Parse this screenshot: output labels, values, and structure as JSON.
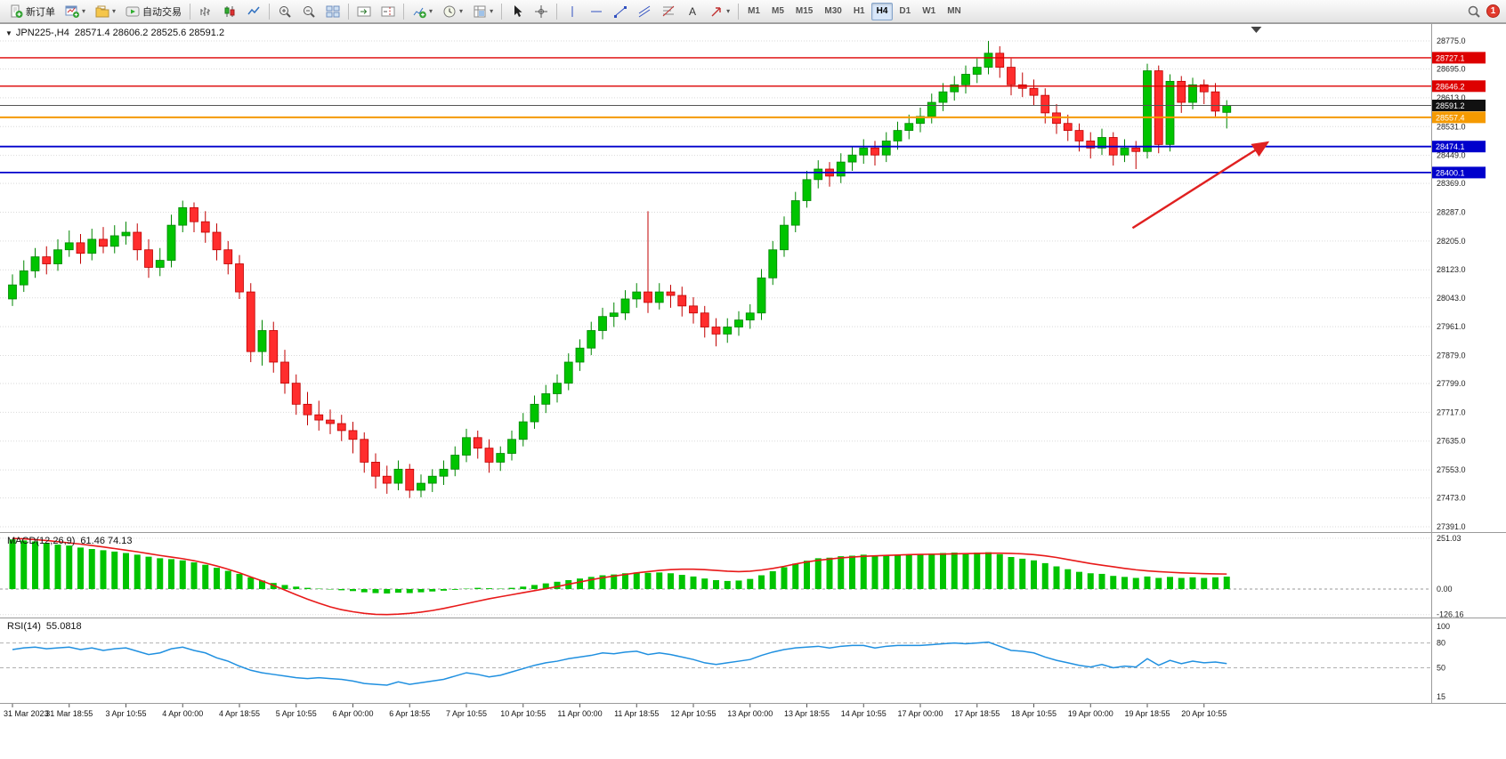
{
  "toolbar": {
    "new_order_label": "新订单",
    "auto_trading_label": "自动交易",
    "caret": "▾",
    "timeframes": [
      "M1",
      "M5",
      "M15",
      "M30",
      "H1",
      "H4",
      "D1",
      "W1",
      "MN"
    ],
    "active_timeframe": "H4",
    "notification_count": "1"
  },
  "chart": {
    "title": "JPN225-,H4",
    "ohlc": "28571.4 28606.2 28525.6 28591.2",
    "dropdown_glyph": "▼",
    "price_ticks": [
      28775.0,
      28695.0,
      28613.0,
      28531.0,
      28449.0,
      28369.0,
      28287.0,
      28205.0,
      28123.0,
      28043.0,
      27961.0,
      27879.0,
      27799.0,
      27717.0,
      27635.0,
      27553.0,
      27473.0,
      27391.0
    ],
    "price_labels": [
      {
        "text": "28727.1",
        "price": 28727.1,
        "box": "#dd0000",
        "line": "#dd0000",
        "lw": 1.4
      },
      {
        "text": "28646.2",
        "price": 28646.2,
        "box": "#dd0000",
        "line": "#dd0000",
        "lw": 1.4
      },
      {
        "text": "28591.2",
        "price": 28591.2,
        "box": "#111111",
        "line": "#555555",
        "lw": 1
      },
      {
        "text": "28557.4",
        "price": 28557.4,
        "box": "#f59a00",
        "line": "#f59a00",
        "lw": 2
      },
      {
        "text": "28474.1",
        "price": 28474.1,
        "box": "#0000cc",
        "line": "#0000cc",
        "lw": 1.8
      },
      {
        "text": "28400.1",
        "price": 28400.1,
        "box": "#0000cc",
        "line": "#0000cc",
        "lw": 1.8
      }
    ],
    "time_labels": [
      "31 Mar 2023",
      "31 Mar 18:55",
      "3 Apr 10:55",
      "4 Apr 00:00",
      "4 Apr 18:55",
      "5 Apr 10:55",
      "6 Apr 00:00",
      "6 Apr 18:55",
      "7 Apr 10:55",
      "10 Apr 10:55",
      "11 Apr 00:00",
      "11 Apr 18:55",
      "12 Apr 10:55",
      "13 Apr 00:00",
      "13 Apr 18:55",
      "14 Apr 10:55",
      "17 Apr 00:00",
      "17 Apr 18:55",
      "18 Apr 10:55",
      "19 Apr 00:00",
      "19 Apr 18:55",
      "20 Apr 10:55"
    ],
    "colors": {
      "up": "#00c400",
      "up_stroke": "#008500",
      "down": "#ff2d2d",
      "down_stroke": "#c00000",
      "grid": "#d9d9d9",
      "macd_hist": "#00c400",
      "macd_signal": "#e81919",
      "rsi_line": "#2090e0",
      "arrow": "#e02020"
    },
    "arrow": {
      "from_index": 98.7,
      "from_price": 28242,
      "to_index": 110.6,
      "to_price": 28486
    },
    "shift_marker_index": 109.6
  },
  "chart_data": {
    "type": "candlestick",
    "symbol": "JPN225-",
    "timeframe": "H4",
    "labels_every": 5,
    "price_axis_range": [
      27391,
      28820
    ],
    "candles_ohlc": [
      [
        28040,
        28110,
        28020,
        28080
      ],
      [
        28080,
        28150,
        28060,
        28120
      ],
      [
        28120,
        28185,
        28100,
        28160
      ],
      [
        28160,
        28190,
        28110,
        28140
      ],
      [
        28140,
        28210,
        28120,
        28180
      ],
      [
        28180,
        28235,
        28160,
        28200
      ],
      [
        28200,
        28225,
        28140,
        28170
      ],
      [
        28170,
        28240,
        28150,
        28210
      ],
      [
        28210,
        28245,
        28170,
        28190
      ],
      [
        28190,
        28250,
        28170,
        28220
      ],
      [
        28220,
        28260,
        28195,
        28230
      ],
      [
        28230,
        28255,
        28150,
        28180
      ],
      [
        28180,
        28210,
        28100,
        28130
      ],
      [
        28130,
        28185,
        28105,
        28150
      ],
      [
        28150,
        28280,
        28130,
        28250
      ],
      [
        28250,
        28320,
        28230,
        28300
      ],
      [
        28300,
        28315,
        28230,
        28260
      ],
      [
        28260,
        28290,
        28200,
        28230
      ],
      [
        28230,
        28255,
        28150,
        28180
      ],
      [
        28180,
        28205,
        28110,
        28140
      ],
      [
        28140,
        28165,
        28040,
        28060
      ],
      [
        28060,
        28085,
        27860,
        27890
      ],
      [
        27890,
        27980,
        27850,
        27950
      ],
      [
        27950,
        27975,
        27830,
        27860
      ],
      [
        27860,
        27895,
        27770,
        27800
      ],
      [
        27800,
        27825,
        27710,
        27740
      ],
      [
        27740,
        27775,
        27680,
        27710
      ],
      [
        27710,
        27750,
        27665,
        27695
      ],
      [
        27695,
        27725,
        27655,
        27685
      ],
      [
        27685,
        27710,
        27635,
        27665
      ],
      [
        27665,
        27690,
        27600,
        27640
      ],
      [
        27640,
        27660,
        27545,
        27575
      ],
      [
        27575,
        27600,
        27500,
        27535
      ],
      [
        27535,
        27565,
        27485,
        27515
      ],
      [
        27515,
        27580,
        27495,
        27555
      ],
      [
        27555,
        27570,
        27473,
        27495
      ],
      [
        27495,
        27540,
        27475,
        27515
      ],
      [
        27515,
        27555,
        27490,
        27535
      ],
      [
        27535,
        27580,
        27510,
        27555
      ],
      [
        27555,
        27620,
        27535,
        27595
      ],
      [
        27595,
        27670,
        27575,
        27645
      ],
      [
        27645,
        27665,
        27585,
        27615
      ],
      [
        27615,
        27640,
        27545,
        27575
      ],
      [
        27575,
        27620,
        27550,
        27600
      ],
      [
        27600,
        27665,
        27580,
        27640
      ],
      [
        27640,
        27715,
        27620,
        27690
      ],
      [
        27690,
        27765,
        27670,
        27740
      ],
      [
        27740,
        27795,
        27715,
        27770
      ],
      [
        27770,
        27825,
        27745,
        27800
      ],
      [
        27800,
        27885,
        27780,
        27860
      ],
      [
        27860,
        27925,
        27835,
        27900
      ],
      [
        27900,
        27975,
        27880,
        27950
      ],
      [
        27950,
        28015,
        27925,
        27990
      ],
      [
        27990,
        28030,
        27960,
        28000
      ],
      [
        28000,
        28065,
        27980,
        28040
      ],
      [
        28040,
        28085,
        28015,
        28060
      ],
      [
        28060,
        28290,
        28000,
        28030
      ],
      [
        28030,
        28085,
        28010,
        28060
      ],
      [
        28060,
        28080,
        28015,
        28050
      ],
      [
        28050,
        28075,
        27990,
        28020
      ],
      [
        28020,
        28045,
        27970,
        28000
      ],
      [
        28000,
        28020,
        27930,
        27960
      ],
      [
        27960,
        27985,
        27905,
        27940
      ],
      [
        27940,
        27985,
        27915,
        27960
      ],
      [
        27960,
        28005,
        27935,
        27980
      ],
      [
        27980,
        28025,
        27955,
        28000
      ],
      [
        28000,
        28125,
        27980,
        28100
      ],
      [
        28100,
        28205,
        28080,
        28180
      ],
      [
        28180,
        28275,
        28160,
        28250
      ],
      [
        28250,
        28345,
        28230,
        28320
      ],
      [
        28320,
        28405,
        28300,
        28380
      ],
      [
        28380,
        28435,
        28355,
        28410
      ],
      [
        28410,
        28430,
        28360,
        28390
      ],
      [
        28390,
        28455,
        28370,
        28430
      ],
      [
        28430,
        28475,
        28405,
        28450
      ],
      [
        28450,
        28495,
        28425,
        28470
      ],
      [
        28470,
        28490,
        28420,
        28450
      ],
      [
        28450,
        28515,
        28430,
        28490
      ],
      [
        28490,
        28545,
        28465,
        28520
      ],
      [
        28520,
        28565,
        28495,
        28540
      ],
      [
        28540,
        28585,
        28515,
        28560
      ],
      [
        28560,
        28625,
        28540,
        28600
      ],
      [
        28600,
        28655,
        28575,
        28630
      ],
      [
        28630,
        28675,
        28605,
        28650
      ],
      [
        28650,
        28705,
        28625,
        28680
      ],
      [
        28680,
        28725,
        28655,
        28700
      ],
      [
        28700,
        28775,
        28680,
        28740
      ],
      [
        28740,
        28760,
        28670,
        28700
      ],
      [
        28700,
        28725,
        28620,
        28650
      ],
      [
        28650,
        28685,
        28615,
        28640
      ],
      [
        28640,
        28665,
        28590,
        28620
      ],
      [
        28620,
        28640,
        28540,
        28570
      ],
      [
        28570,
        28595,
        28510,
        28540
      ],
      [
        28540,
        28565,
        28490,
        28520
      ],
      [
        28520,
        28540,
        28460,
        28490
      ],
      [
        28490,
        28515,
        28440,
        28470
      ],
      [
        28470,
        28525,
        28450,
        28500
      ],
      [
        28500,
        28515,
        28420,
        28450
      ],
      [
        28450,
        28495,
        28430,
        28470
      ],
      [
        28470,
        28490,
        28410,
        28460
      ],
      [
        28460,
        28710,
        28440,
        28690
      ],
      [
        28690,
        28705,
        28455,
        28480
      ],
      [
        28480,
        28680,
        28460,
        28660
      ],
      [
        28660,
        28675,
        28570,
        28600
      ],
      [
        28600,
        28670,
        28580,
        28650
      ],
      [
        28650,
        28665,
        28595,
        28630
      ],
      [
        28630,
        28655,
        28560,
        28575
      ],
      [
        28571.4,
        28606.2,
        28525.6,
        28591.2
      ]
    ],
    "macd": {
      "label": "MACD(12,26,9)",
      "values_text": "61.46 74.13",
      "scale_labels": [
        {
          "text": "251.03",
          "value": 251.03
        },
        {
          "text": "0.00",
          "value": 0
        },
        {
          "text": "-126.16",
          "value": -126.16
        }
      ],
      "histogram": [
        245,
        240,
        235,
        228,
        220,
        215,
        205,
        198,
        192,
        185,
        178,
        170,
        160,
        152,
        148,
        142,
        132,
        120,
        105,
        90,
        75,
        58,
        42,
        30,
        20,
        12,
        6,
        2,
        -2,
        -6,
        -10,
        -16,
        -20,
        -22,
        -18,
        -20,
        -16,
        -12,
        -8,
        -4,
        2,
        6,
        4,
        2,
        6,
        12,
        20,
        28,
        36,
        44,
        52,
        60,
        68,
        72,
        78,
        82,
        80,
        82,
        78,
        70,
        62,
        52,
        44,
        40,
        42,
        50,
        68,
        88,
        108,
        126,
        140,
        152,
        155,
        162,
        165,
        170,
        165,
        168,
        170,
        172,
        172,
        175,
        178,
        180,
        178,
        180,
        182,
        172,
        158,
        150,
        142,
        128,
        112,
        98,
        85,
        78,
        75,
        65,
        60,
        55,
        62,
        55,
        60,
        55,
        58,
        55,
        58,
        61.46
      ],
      "signal": [
        250,
        248,
        244,
        240,
        234,
        228,
        222,
        215,
        208,
        200,
        192,
        184,
        175,
        166,
        158,
        150,
        140,
        128,
        114,
        98,
        80,
        60,
        40,
        18,
        -5,
        -28,
        -50,
        -70,
        -88,
        -102,
        -112,
        -120,
        -125,
        -126,
        -124,
        -120,
        -114,
        -106,
        -96,
        -84,
        -72,
        -60,
        -48,
        -38,
        -28,
        -18,
        -8,
        2,
        12,
        24,
        35,
        46,
        56,
        64,
        72,
        80,
        86,
        92,
        96,
        98,
        98,
        96,
        92,
        88,
        86,
        88,
        94,
        102,
        112,
        124,
        134,
        142,
        148,
        154,
        158,
        162,
        164,
        166,
        168,
        170,
        171,
        172,
        173,
        174,
        175,
        176,
        177,
        177,
        176,
        174,
        170,
        164,
        156,
        146,
        136,
        126,
        118,
        110,
        102,
        95,
        90,
        86,
        83,
        80,
        78,
        76,
        75,
        74.13
      ]
    },
    "rsi": {
      "label": "RSI(14)",
      "value_text": "55.0818",
      "levels": [
        {
          "text": "100",
          "value": 100
        },
        {
          "text": "80",
          "value": 80
        },
        {
          "text": "50",
          "value": 50
        },
        {
          "text": "15",
          "value": 15
        }
      ],
      "values": [
        72,
        74,
        75,
        73,
        74,
        75,
        72,
        74,
        71,
        73,
        74,
        70,
        66,
        68,
        73,
        75,
        71,
        68,
        62,
        58,
        52,
        47,
        44,
        42,
        40,
        38,
        37,
        38,
        37,
        36,
        34,
        31,
        30,
        29,
        33,
        30,
        32,
        34,
        36,
        40,
        44,
        42,
        39,
        41,
        45,
        49,
        53,
        56,
        58,
        61,
        63,
        65,
        68,
        67,
        69,
        70,
        66,
        68,
        66,
        63,
        60,
        56,
        54,
        56,
        58,
        60,
        65,
        69,
        72,
        74,
        75,
        76,
        74,
        76,
        77,
        77,
        74,
        76,
        77,
        77,
        77,
        78,
        79,
        80,
        79,
        80,
        81,
        76,
        71,
        70,
        68,
        63,
        59,
        56,
        53,
        51,
        54,
        50,
        52,
        51,
        61,
        53,
        59,
        55,
        58,
        56,
        57,
        55.08
      ]
    }
  }
}
